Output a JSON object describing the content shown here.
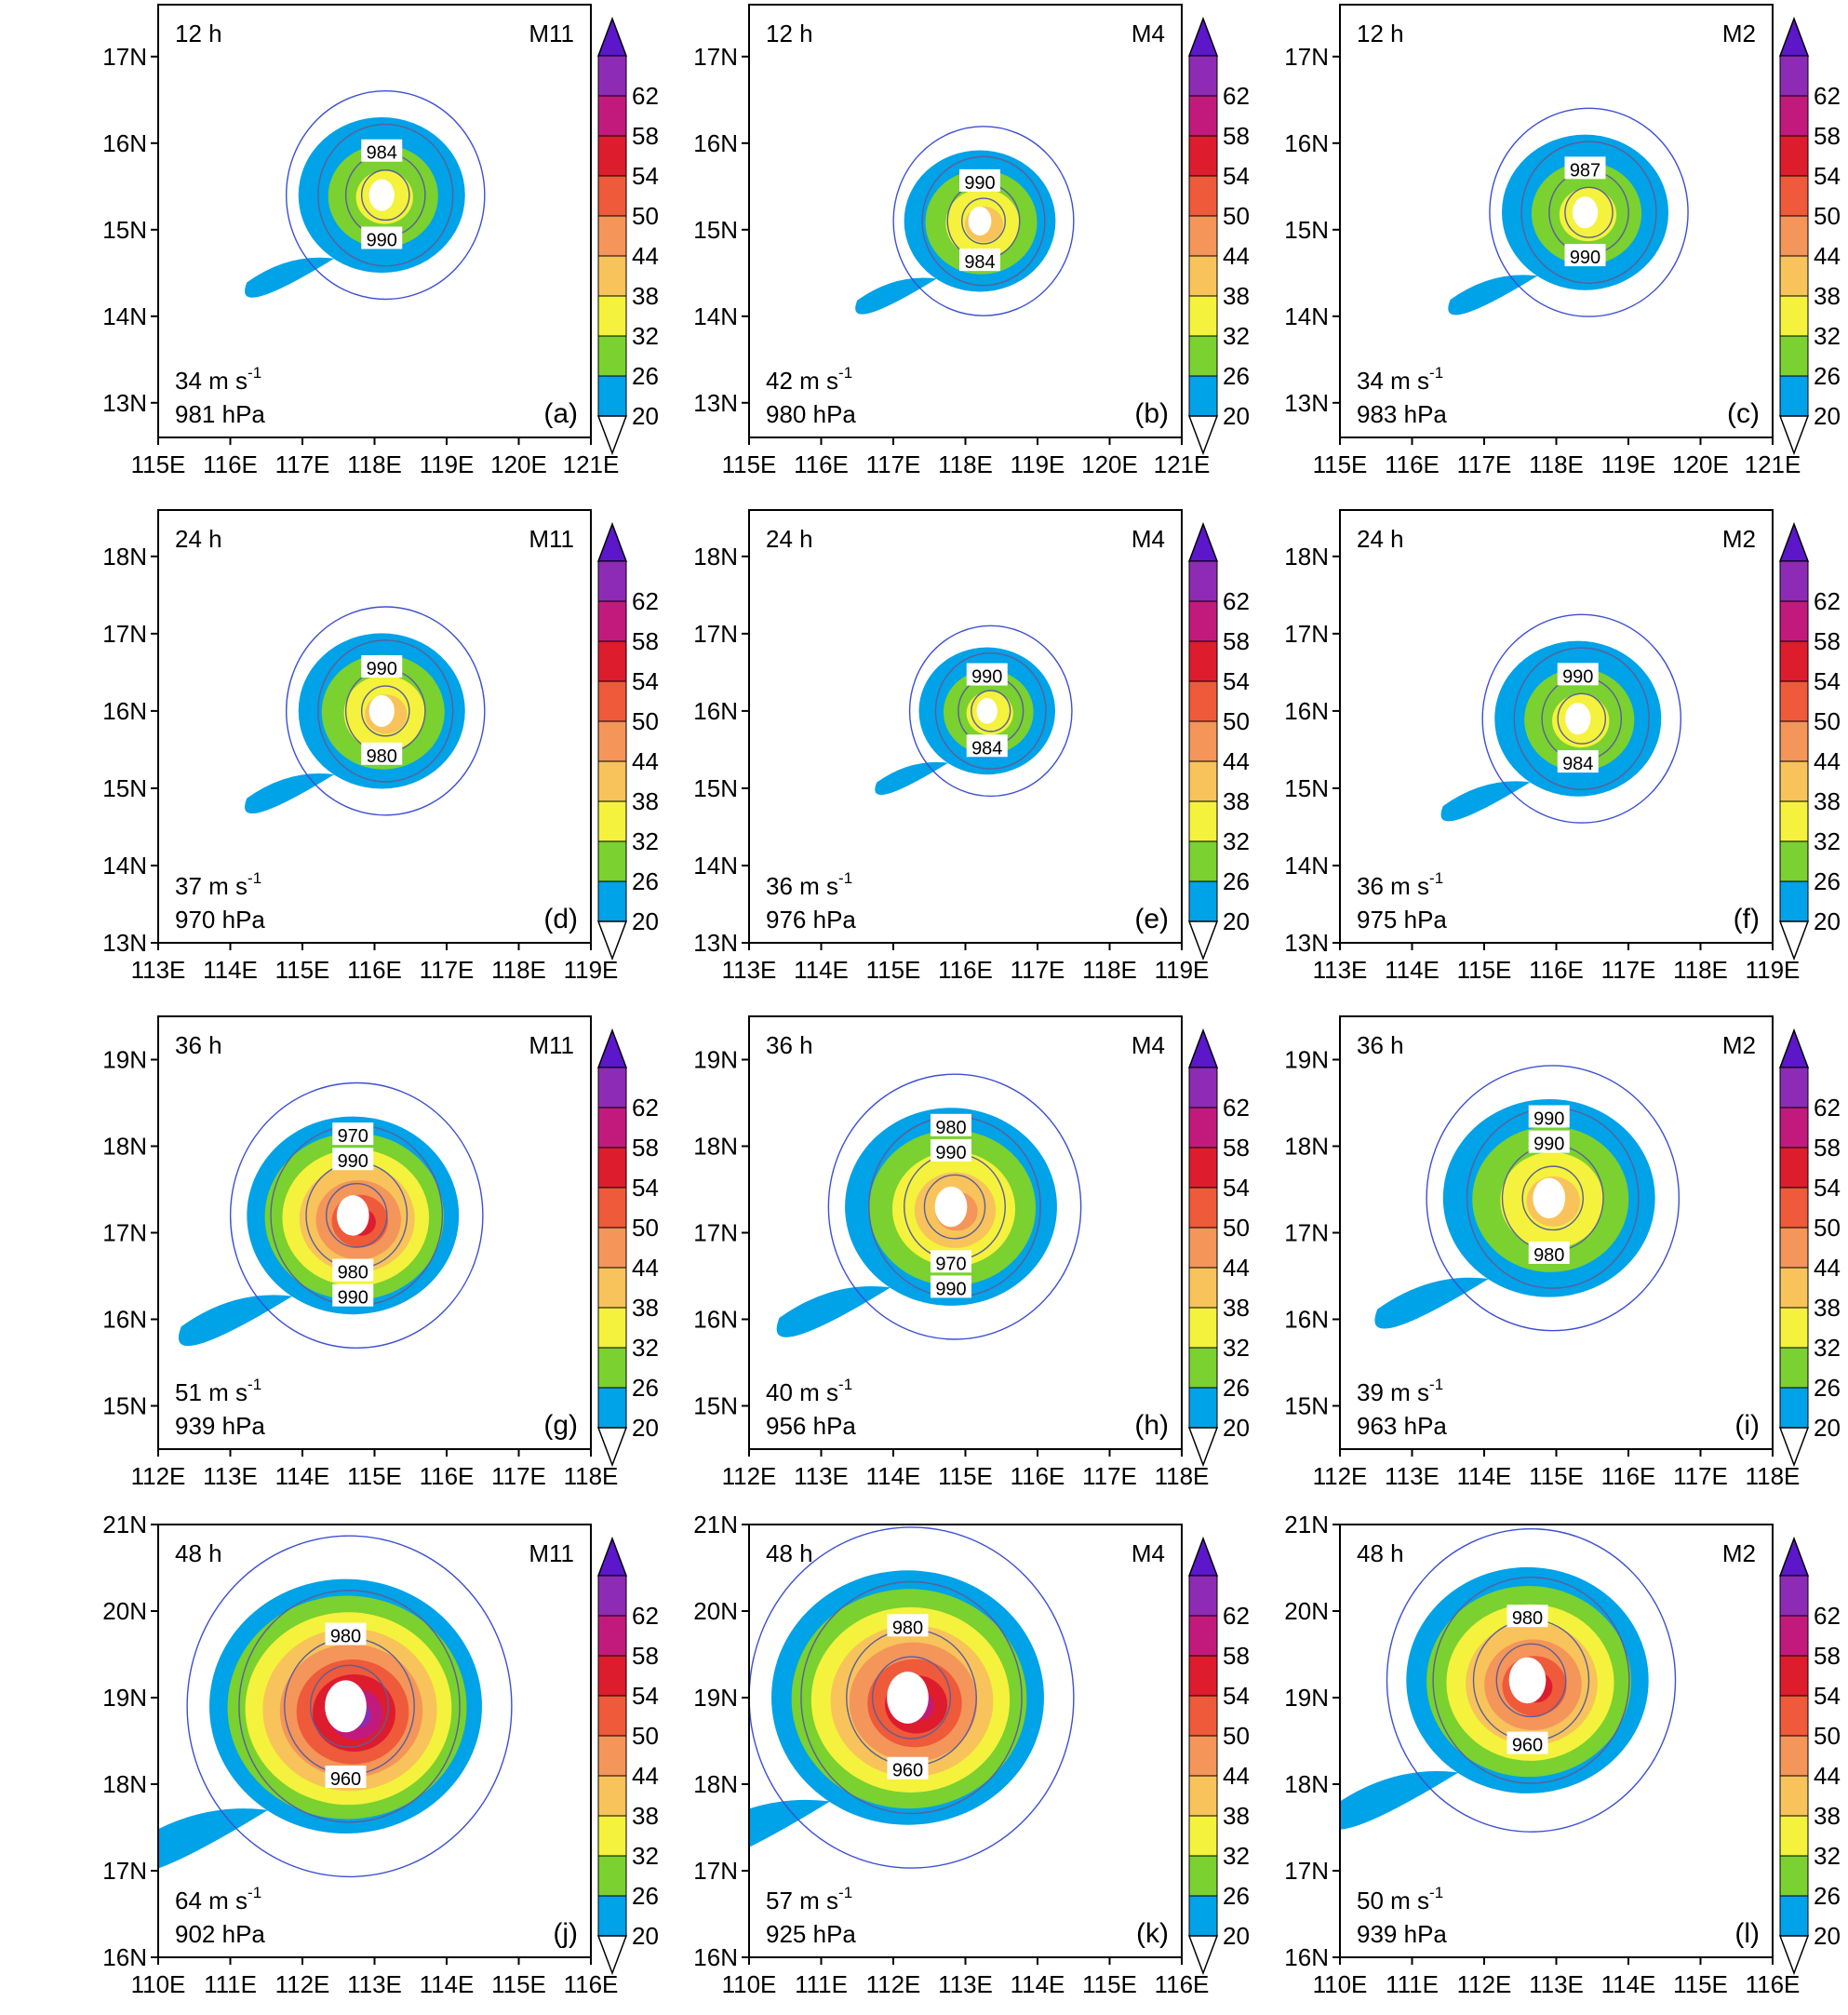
{
  "colorbar": {
    "labels": [
      "20",
      "26",
      "32",
      "38",
      "44",
      "50",
      "54",
      "58",
      "62"
    ],
    "colors": [
      "#00a2e8",
      "#7ad12f",
      "#f4f23c",
      "#f8c35a",
      "#f4955a",
      "#ee5a3a",
      "#dd1c2e",
      "#c21a7c",
      "#8e2bb4"
    ],
    "top_color": "#5b17c9"
  },
  "rows": [
    {
      "time": "12 h",
      "xticks": [
        "115E",
        "116E",
        "117E",
        "118E",
        "119E",
        "120E",
        "121E"
      ],
      "yticks": [
        "13N",
        "14N",
        "15N",
        "16N",
        "17N"
      ]
    },
    {
      "time": "24 h",
      "xticks": [
        "113E",
        "114E",
        "115E",
        "116E",
        "117E",
        "118E",
        "119E"
      ],
      "yticks": [
        "13N",
        "14N",
        "15N",
        "16N",
        "17N",
        "18N"
      ]
    },
    {
      "time": "36 h",
      "xticks": [
        "112E",
        "113E",
        "114E",
        "115E",
        "116E",
        "117E",
        "118E"
      ],
      "yticks": [
        "15N",
        "16N",
        "17N",
        "18N",
        "19N"
      ]
    },
    {
      "time": "48 h",
      "xticks": [
        "110E",
        "111E",
        "112E",
        "113E",
        "114E",
        "115E",
        "116E"
      ],
      "yticks": [
        "16N",
        "17N",
        "18N",
        "19N",
        "20N",
        "21N"
      ]
    }
  ],
  "chart_data": [
    {
      "type": "contour",
      "panel": "(a)",
      "time": "12 h",
      "model": "M11",
      "max_wind": "34 m s",
      "min_pressure": "981 hPa",
      "xlim": [
        115,
        121
      ],
      "ylim": [
        12.6,
        17.6
      ],
      "center": [
        118.1,
        15.4
      ],
      "radius_deg": 1.1,
      "max_level": 32,
      "isobars": [
        "984",
        "990"
      ]
    },
    {
      "type": "contour",
      "panel": "(b)",
      "time": "12 h",
      "model": "M4",
      "max_wind": "42 m s",
      "min_pressure": "980 hPa",
      "xlim": [
        115,
        121
      ],
      "ylim": [
        12.6,
        17.6
      ],
      "center": [
        118.2,
        15.1
      ],
      "radius_deg": 1.0,
      "max_level": 38,
      "isobars": [
        "990",
        "984"
      ]
    },
    {
      "type": "contour",
      "panel": "(c)",
      "time": "12 h",
      "model": "M2",
      "max_wind": "34 m s",
      "min_pressure": "983 hPa",
      "xlim": [
        115,
        121
      ],
      "ylim": [
        12.6,
        17.6
      ],
      "center": [
        118.4,
        15.2
      ],
      "radius_deg": 1.1,
      "max_level": 32,
      "isobars": [
        "987",
        "990"
      ]
    },
    {
      "type": "contour",
      "panel": "(d)",
      "time": "24 h",
      "model": "M11",
      "max_wind": "37 m s",
      "min_pressure": "970 hPa",
      "xlim": [
        113,
        119
      ],
      "ylim": [
        13,
        18.6
      ],
      "center": [
        116.1,
        16.0
      ],
      "radius_deg": 1.1,
      "max_level": 38,
      "isobars": [
        "990",
        "980"
      ]
    },
    {
      "type": "contour",
      "panel": "(e)",
      "time": "24 h",
      "model": "M4",
      "max_wind": "36 m s",
      "min_pressure": "976 hPa",
      "xlim": [
        113,
        119
      ],
      "ylim": [
        13,
        18.6
      ],
      "center": [
        116.3,
        16.0
      ],
      "radius_deg": 0.9,
      "max_level": 32,
      "isobars": [
        "990",
        "984"
      ]
    },
    {
      "type": "contour",
      "panel": "(f)",
      "time": "24 h",
      "model": "M2",
      "max_wind": "36 m s",
      "min_pressure": "975 hPa",
      "xlim": [
        113,
        119
      ],
      "ylim": [
        13,
        18.6
      ],
      "center": [
        116.3,
        15.9
      ],
      "radius_deg": 1.1,
      "max_level": 32,
      "isobars": [
        "990",
        "984"
      ]
    },
    {
      "type": "contour",
      "panel": "(g)",
      "time": "36 h",
      "model": "M11",
      "max_wind": "51 m s",
      "min_pressure": "939 hPa",
      "xlim": [
        112,
        118
      ],
      "ylim": [
        14.5,
        19.5
      ],
      "center": [
        114.7,
        17.2
      ],
      "radius_deg": 1.4,
      "max_level": 54,
      "isobars": [
        "990",
        "980",
        "970",
        "990"
      ]
    },
    {
      "type": "contour",
      "panel": "(h)",
      "time": "36 h",
      "model": "M4",
      "max_wind": "40 m s",
      "min_pressure": "956 hPa",
      "xlim": [
        112,
        118
      ],
      "ylim": [
        14.5,
        19.5
      ],
      "center": [
        114.8,
        17.3
      ],
      "radius_deg": 1.4,
      "max_level": 44,
      "isobars": [
        "990",
        "970",
        "980",
        "990"
      ]
    },
    {
      "type": "contour",
      "panel": "(i)",
      "time": "36 h",
      "model": "M2",
      "max_wind": "39 m s",
      "min_pressure": "963 hPa",
      "xlim": [
        112,
        118
      ],
      "ylim": [
        14.5,
        19.5
      ],
      "center": [
        114.9,
        17.4
      ],
      "radius_deg": 1.4,
      "max_level": 38,
      "isobars": [
        "990",
        "980",
        "990"
      ]
    },
    {
      "type": "contour",
      "panel": "(j)",
      "time": "48 h",
      "model": "M11",
      "max_wind": "64 m s",
      "min_pressure": "902 hPa",
      "xlim": [
        110,
        116
      ],
      "ylim": [
        16,
        21
      ],
      "center": [
        112.6,
        18.9
      ],
      "radius_deg": 1.8,
      "max_level": 62,
      "isobars": [
        "980",
        "960"
      ]
    },
    {
      "type": "contour",
      "panel": "(k)",
      "time": "48 h",
      "model": "M4",
      "max_wind": "57 m s",
      "min_pressure": "925 hPa",
      "xlim": [
        110,
        116
      ],
      "ylim": [
        16,
        21
      ],
      "center": [
        112.2,
        19.0
      ],
      "radius_deg": 1.8,
      "max_level": 58,
      "isobars": [
        "980",
        "960"
      ]
    },
    {
      "type": "contour",
      "panel": "(l)",
      "time": "48 h",
      "model": "M2",
      "max_wind": "50 m s",
      "min_pressure": "939 hPa",
      "xlim": [
        110,
        116
      ],
      "ylim": [
        16,
        21
      ],
      "center": [
        112.6,
        19.2
      ],
      "radius_deg": 1.6,
      "max_level": 54,
      "isobars": [
        "980",
        "960"
      ]
    }
  ]
}
